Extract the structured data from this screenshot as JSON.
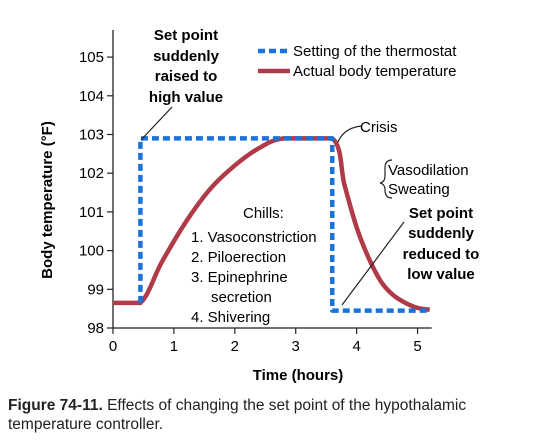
{
  "figure": {
    "caption_label": "Figure 74-11.",
    "caption_text": "Effects of changing the set point of the hypothalamic temperature controller."
  },
  "chart_data": {
    "type": "line",
    "xlabel": "Time (hours)",
    "ylabel": "Body temperature (°F)",
    "xlim": [
      0,
      5.5
    ],
    "ylim": [
      98,
      105.7
    ],
    "x_ticks": [
      0,
      1,
      2,
      3,
      4,
      5
    ],
    "y_ticks": [
      98,
      99,
      100,
      101,
      102,
      103,
      104,
      105
    ],
    "grid": false,
    "legend_position": "top-right",
    "colors": {
      "thermostat": "#1a73d9",
      "body": "#b03a48"
    },
    "series": [
      {
        "name": "Setting of the thermostat",
        "style": "dashed",
        "x": [
          0.45,
          0.45,
          3.6,
          3.6,
          5.2
        ],
        "y": [
          98.65,
          102.9,
          102.9,
          98.45,
          98.45
        ]
      },
      {
        "name": "Actual body temperature",
        "style": "solid",
        "x": [
          0,
          0.45,
          0.8,
          1.2,
          1.6,
          2.0,
          2.4,
          2.8,
          3.6,
          3.8,
          4.0,
          4.2,
          4.4,
          4.6,
          4.8,
          5.0,
          5.2
        ],
        "y": [
          98.65,
          98.65,
          99.7,
          100.75,
          101.6,
          102.2,
          102.65,
          102.9,
          102.9,
          101.7,
          100.6,
          99.8,
          99.2,
          98.85,
          98.65,
          98.52,
          98.47
        ]
      }
    ],
    "annotations": {
      "raised": [
        "Set point",
        "suddenly",
        "raised to",
        "high value"
      ],
      "crisis": "Crisis",
      "vasodilation": [
        "Vasodilation",
        "Sweating"
      ],
      "chills_title": "Chills:",
      "chills_items": [
        "1. Vasoconstriction",
        "2. Piloerection",
        "3. Epinephrine",
        "secretion",
        "4. Shivering"
      ],
      "reduced": [
        "Set point",
        "suddenly",
        "reduced to",
        "low value"
      ]
    }
  }
}
